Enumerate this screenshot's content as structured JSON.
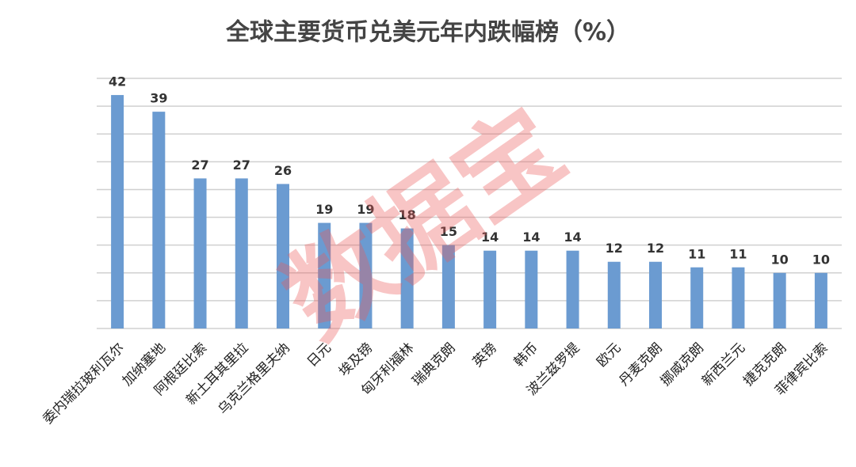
{
  "chart_data": {
    "type": "bar",
    "title": "全球主要货币兑美元年内跌幅榜（%）",
    "watermark": "数据宝",
    "categories": [
      "委内瑞拉玻利瓦尔",
      "加纳塞地",
      "阿根廷比索",
      "新土耳其里拉",
      "乌克兰格里夫纳",
      "日元",
      "埃及镑",
      "匈牙利福林",
      "瑞典克朗",
      "英镑",
      "韩币",
      "波兰兹罗提",
      "欧元",
      "丹麦克朗",
      "挪威克朗",
      "新西兰元",
      "捷克克朗",
      "菲律宾比索"
    ],
    "values": [
      42,
      39,
      27,
      27,
      26,
      19,
      19,
      18,
      15,
      14,
      14,
      14,
      12,
      12,
      11,
      11,
      10,
      10
    ],
    "color": "#6b9bd1",
    "ylim": [
      0,
      45
    ],
    "yticks": [
      0,
      5,
      10,
      15,
      20,
      25,
      30,
      35,
      40,
      45
    ],
    "grid": true
  }
}
